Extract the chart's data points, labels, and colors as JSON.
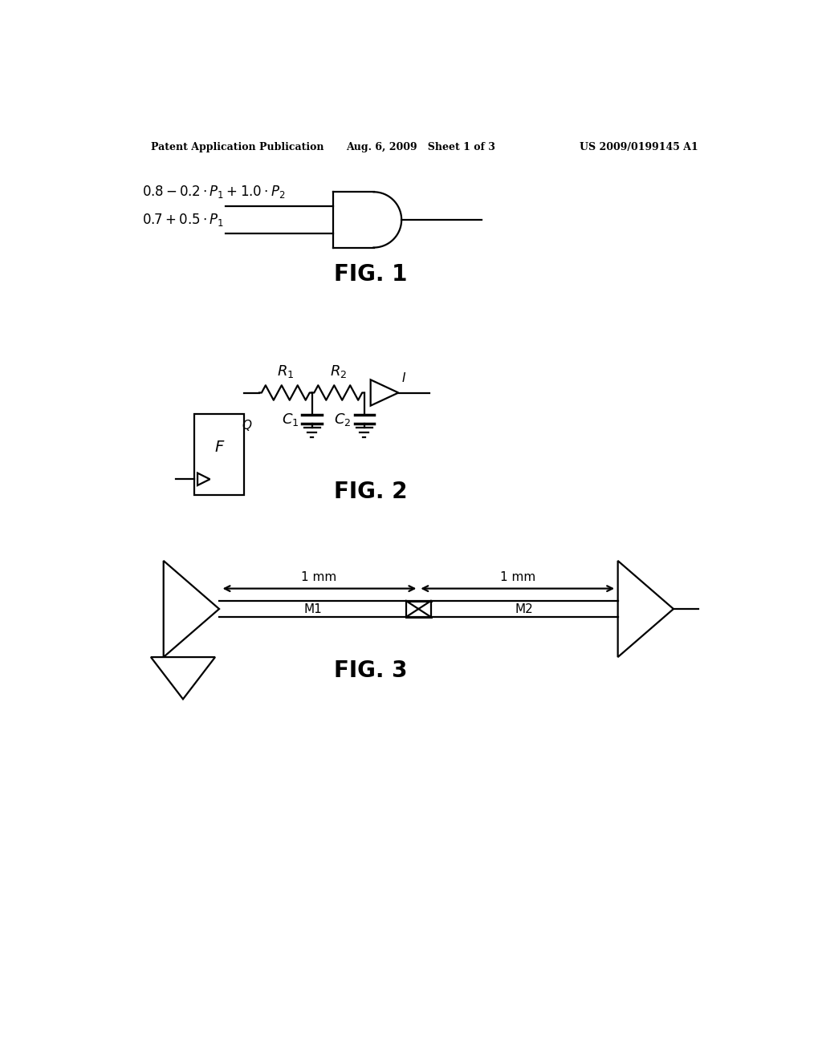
{
  "background_color": "#ffffff",
  "header_left": "Patent Application Publication",
  "header_center": "Aug. 6, 2009   Sheet 1 of 3",
  "header_right": "US 2009/0199145 A1",
  "fig1_label": "FIG. 1",
  "fig2_label": "FIG. 2",
  "fig3_label": "FIG. 3",
  "lw": 1.6,
  "lw_thick": 2.5,
  "line_color": "#000000"
}
